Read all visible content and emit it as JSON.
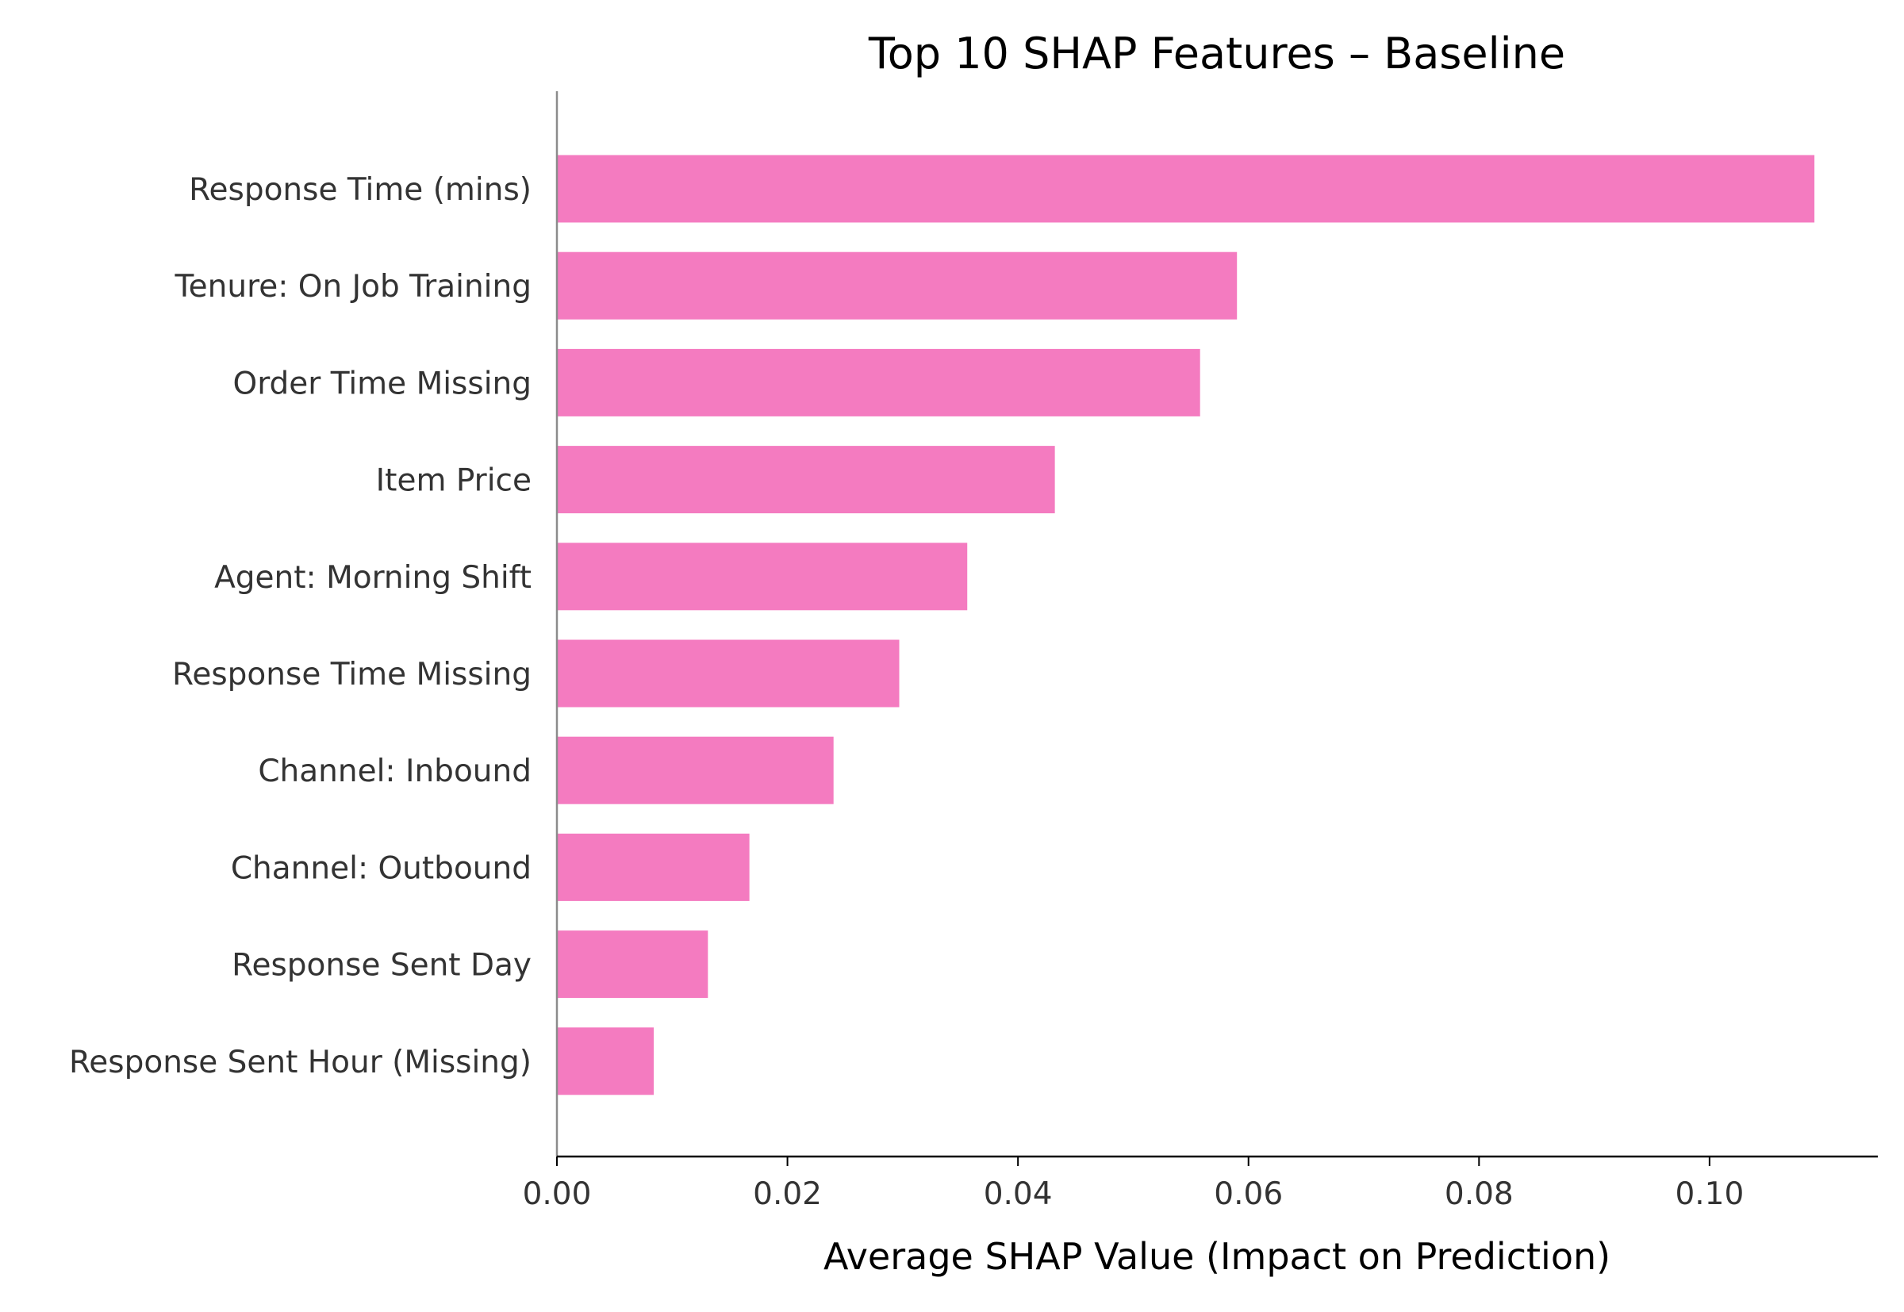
{
  "chart_data": {
    "type": "bar",
    "orientation": "horizontal",
    "title": "Top 10 SHAP Features – Baseline",
    "xlabel": "Average SHAP Value (Impact on Prediction)",
    "ylabel": "",
    "categories": [
      "Response Time (mins)",
      "Tenure: On Job Training",
      "Order Time Missing",
      "Item Price",
      "Agent: Morning Shift",
      "Response Time Missing",
      "Channel: Inbound",
      "Channel: Outbound",
      "Response Sent Day",
      "Response Sent Hour (Missing)"
    ],
    "values": [
      0.1091,
      0.059,
      0.0558,
      0.0432,
      0.0356,
      0.0297,
      0.024,
      0.0167,
      0.0131,
      0.0084
    ],
    "xlim": [
      0,
      0.1146
    ],
    "xticks": [
      0.0,
      0.02,
      0.04,
      0.06,
      0.08,
      0.1
    ],
    "xtick_labels": [
      "0.00",
      "0.02",
      "0.04",
      "0.06",
      "0.08",
      "0.10"
    ],
    "grid": false,
    "colors": {
      "bar": "#f47bc0",
      "left_spine": "#8c8c8c",
      "bottom_spine": "#000000",
      "tick_text": "#333333",
      "title_text": "#000000"
    }
  }
}
